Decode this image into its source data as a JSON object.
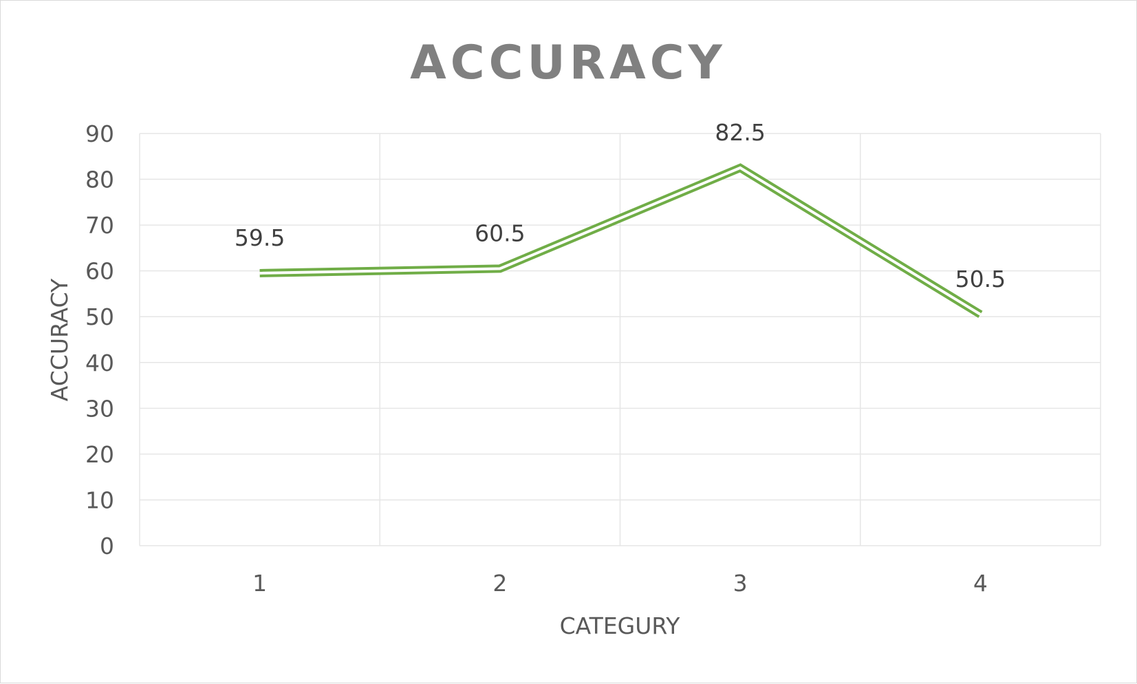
{
  "colors": {
    "line": "#70ad47",
    "grid": "#e6e6e6",
    "text": "#595959",
    "title": "#808080",
    "data_label": "#404040",
    "border": "#d9d9d9"
  },
  "chart_data": {
    "type": "line",
    "title": "ACCURACY",
    "xlabel": "CATEGURY",
    "ylabel": "ACCURACY",
    "categories": [
      "1",
      "2",
      "3",
      "4"
    ],
    "series": [
      {
        "values": [
          59.5,
          60.5,
          82.5,
          50.5
        ],
        "data_labels": [
          "59.5",
          "60.5",
          "82.5",
          "50.5"
        ]
      }
    ],
    "ylim": [
      0,
      90
    ],
    "yticks": [
      0,
      10,
      20,
      30,
      40,
      50,
      60,
      70,
      80,
      90
    ],
    "ytick_labels": [
      "0",
      "10",
      "20",
      "30",
      "40",
      "50",
      "60",
      "70",
      "80",
      "90"
    ],
    "line_style": "double",
    "grid": true,
    "legend": "none"
  }
}
